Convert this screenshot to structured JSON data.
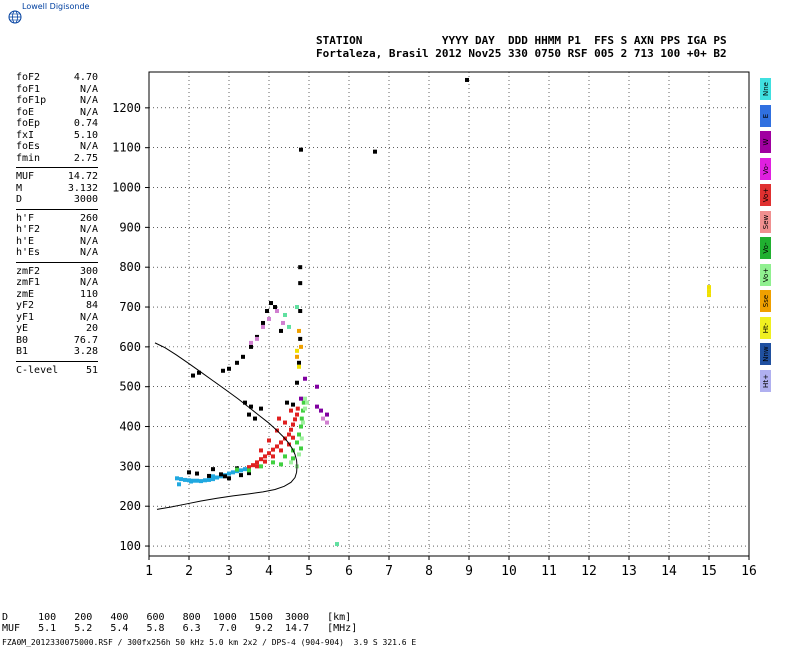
{
  "logo": {
    "text": "Lowell Digisonde",
    "icon": "globe-icon",
    "color": "#0040a0"
  },
  "header": {
    "row1": "STATION            YYYY DAY  DDD HHMM P1  FFS S AXN PPS IGA PS",
    "row2": "Fortaleza, Brasil 2012 Nov25 330 0750 RSF 005 2 713 100 +0+ B2"
  },
  "params": {
    "group1": [
      {
        "name": "foF2",
        "value": "4.70"
      },
      {
        "name": "foF1",
        "value": "N/A"
      },
      {
        "name": "foF1p",
        "value": "N/A"
      },
      {
        "name": "foE",
        "value": "N/A"
      },
      {
        "name": "foEp",
        "value": "0.74"
      },
      {
        "name": "fxI",
        "value": "5.10"
      },
      {
        "name": "foEs",
        "value": "N/A"
      },
      {
        "name": "fmin",
        "value": "2.75"
      }
    ],
    "group2": [
      {
        "name": "MUF",
        "value": "14.72"
      },
      {
        "name": "M",
        "value": "3.132"
      },
      {
        "name": "D",
        "value": "3000"
      }
    ],
    "group3": [
      {
        "name": "h'F",
        "value": "260"
      },
      {
        "name": "h'F2",
        "value": "N/A"
      },
      {
        "name": "h'E",
        "value": "N/A"
      },
      {
        "name": "h'Es",
        "value": "N/A"
      }
    ],
    "group4": [
      {
        "name": "zmF2",
        "value": "300"
      },
      {
        "name": "zmF1",
        "value": "N/A"
      },
      {
        "name": "zmE",
        "value": "110"
      },
      {
        "name": "yF2",
        "value": "84"
      },
      {
        "name": "yF1",
        "value": "N/A"
      },
      {
        "name": "yE",
        "value": "20"
      },
      {
        "name": "B0",
        "value": "76.7"
      },
      {
        "name": "B1",
        "value": "3.28"
      }
    ],
    "group5": [
      {
        "name": "C-level",
        "value": "51"
      }
    ]
  },
  "legend": [
    {
      "label": "Nne",
      "color": "#40e0e0"
    },
    {
      "label": "E",
      "color": "#3070e0"
    },
    {
      "label": "W",
      "color": "#a000a0"
    },
    {
      "label": "Vo-",
      "color": "#e020e0"
    },
    {
      "label": "Vo+",
      "color": "#e03030"
    },
    {
      "label": "Sew",
      "color": "#f09090"
    },
    {
      "label": "Vo-",
      "color": "#20b030"
    },
    {
      "label": "Vo+",
      "color": "#90f090"
    },
    {
      "label": "Sse",
      "color": "#f0a000"
    },
    {
      "label": "Ht-",
      "color": "#f0f020"
    },
    {
      "label": "Nnw",
      "color": "#2050a0"
    },
    {
      "label": "Ht+",
      "color": "#b0b0f0"
    }
  ],
  "bottom": {
    "row1": "D     100   200   400   600   800  1000  1500  3000   [km]",
    "row2": "MUF   5.1   5.2   5.4   5.8   6.3   7.0   9.2  14.7   [MHz]",
    "footer": "FZA0M_2012330075000.RSF / 300fx256h 50 kHz 5.0 km 2x2 / DPS-4 (904-904)  3.9 S 321.6 E"
  },
  "chart_data": {
    "type": "scatter",
    "xlabel": "",
    "ylabel": "",
    "xlim": [
      1,
      16
    ],
    "ylim": [
      75,
      1290
    ],
    "x_ticks": [
      1,
      2,
      3,
      4,
      5,
      6,
      7,
      8,
      9,
      10,
      11,
      12,
      13,
      14,
      15,
      16
    ],
    "y_ticks": [
      100,
      200,
      300,
      400,
      500,
      600,
      700,
      800,
      900,
      1000,
      1100,
      1200
    ],
    "grid": true,
    "series": [
      {
        "points": [
          [
            1.7,
            270
          ],
          [
            1.8,
            268
          ],
          [
            1.9,
            266
          ],
          [
            2.0,
            265
          ],
          [
            2.1,
            264
          ],
          [
            2.2,
            264
          ],
          [
            2.3,
            263
          ],
          [
            2.4,
            265
          ],
          [
            2.5,
            266
          ],
          [
            2.6,
            268
          ],
          [
            2.7,
            272
          ],
          [
            2.8,
            275
          ],
          [
            2.9,
            278
          ],
          [
            3.0,
            282
          ],
          [
            3.1,
            285
          ],
          [
            3.2,
            288
          ],
          [
            1.75,
            255
          ],
          [
            2.05,
            262
          ],
          [
            2.6,
            275
          ],
          [
            3.3,
            290
          ],
          [
            3.4,
            293
          ]
        ],
        "color": "#20a8e0"
      },
      {
        "points": [
          [
            2.0,
            285
          ],
          [
            2.2,
            282
          ],
          [
            2.5,
            276
          ],
          [
            2.8,
            280
          ],
          [
            3.0,
            270
          ],
          [
            3.3,
            278
          ],
          [
            3.5,
            283
          ],
          [
            2.6,
            293
          ],
          [
            2.9,
            275
          ],
          [
            3.2,
            295
          ]
        ],
        "color": "#000000"
      },
      {
        "points": [
          [
            3.5,
            298
          ],
          [
            3.6,
            303
          ],
          [
            3.7,
            310
          ],
          [
            3.8,
            318
          ],
          [
            3.9,
            325
          ],
          [
            4.0,
            333
          ],
          [
            4.1,
            342
          ],
          [
            4.2,
            350
          ],
          [
            4.3,
            360
          ],
          [
            4.4,
            370
          ],
          [
            4.5,
            380
          ],
          [
            4.55,
            392
          ],
          [
            4.6,
            405
          ],
          [
            4.65,
            418
          ],
          [
            4.7,
            430
          ],
          [
            4.72,
            445
          ],
          [
            3.7,
            300
          ],
          [
            3.9,
            312
          ],
          [
            4.1,
            325
          ],
          [
            4.3,
            340
          ],
          [
            4.5,
            355
          ],
          [
            4.6,
            372
          ],
          [
            4.0,
            365
          ],
          [
            4.2,
            390
          ],
          [
            4.4,
            410
          ],
          [
            4.55,
            440
          ],
          [
            3.8,
            340
          ],
          [
            4.25,
            420
          ]
        ],
        "color": "#e02020"
      },
      {
        "points": [
          [
            3.2,
            292
          ],
          [
            3.5,
            290
          ],
          [
            3.8,
            300
          ],
          [
            4.1,
            310
          ],
          [
            4.4,
            325
          ],
          [
            4.6,
            340
          ],
          [
            4.7,
            360
          ],
          [
            4.75,
            380
          ],
          [
            4.8,
            400
          ],
          [
            4.82,
            420
          ],
          [
            4.85,
            440
          ],
          [
            4.87,
            460
          ],
          [
            4.6,
            320
          ],
          [
            4.8,
            345
          ],
          [
            4.3,
            305
          ]
        ],
        "color": "#40d040"
      },
      {
        "points": [
          [
            4.7,
            300
          ],
          [
            4.75,
            330
          ],
          [
            4.82,
            370
          ],
          [
            4.85,
            410
          ],
          [
            4.9,
            445
          ],
          [
            4.9,
            470
          ],
          [
            4.55,
            310
          ],
          [
            4.95,
            460
          ]
        ],
        "color": "#a0f0a0"
      },
      {
        "points": [
          [
            2.1,
            528
          ],
          [
            2.25,
            535
          ],
          [
            2.85,
            540
          ],
          [
            3.0,
            545
          ],
          [
            3.2,
            560
          ],
          [
            3.35,
            575
          ],
          [
            3.55,
            600
          ],
          [
            3.7,
            625
          ],
          [
            3.85,
            660
          ],
          [
            3.95,
            690
          ],
          [
            4.05,
            710
          ],
          [
            4.15,
            700
          ],
          [
            4.3,
            640
          ],
          [
            4.45,
            460
          ],
          [
            4.6,
            455
          ],
          [
            3.4,
            460
          ],
          [
            3.55,
            450
          ],
          [
            3.8,
            445
          ],
          [
            4.7,
            510
          ],
          [
            4.75,
            560
          ],
          [
            4.78,
            620
          ],
          [
            4.78,
            690
          ],
          [
            4.78,
            760
          ],
          [
            4.78,
            800
          ],
          [
            8.95,
            1270
          ],
          [
            6.65,
            1090
          ],
          [
            4.8,
            1095
          ],
          [
            3.5,
            430
          ],
          [
            3.65,
            420
          ]
        ],
        "color": "#000000"
      },
      {
        "points": [
          [
            3.7,
            620
          ],
          [
            3.85,
            650
          ],
          [
            4.0,
            670
          ],
          [
            4.2,
            690
          ],
          [
            3.55,
            610
          ],
          [
            5.35,
            420
          ],
          [
            5.45,
            410
          ],
          [
            4.35,
            660
          ]
        ],
        "color": "#d080d0"
      },
      {
        "points": [
          [
            5.2,
            450
          ],
          [
            5.3,
            440
          ],
          [
            5.45,
            430
          ],
          [
            5.2,
            500
          ],
          [
            4.8,
            470
          ],
          [
            4.9,
            520
          ]
        ],
        "color": "#8000a0"
      },
      {
        "points": [
          [
            4.7,
            590
          ],
          [
            4.75,
            550
          ],
          [
            15.0,
            750
          ],
          [
            15.0,
            740
          ],
          [
            15.0,
            730
          ]
        ],
        "color": "#f0e000"
      },
      {
        "points": [
          [
            4.7,
            700
          ],
          [
            4.5,
            650
          ],
          [
            4.4,
            680
          ],
          [
            5.7,
            105
          ]
        ],
        "color": "#60e0a0"
      },
      {
        "points": [
          [
            4.8,
            600
          ],
          [
            4.75,
            640
          ],
          [
            4.7,
            575
          ]
        ],
        "color": "#f0a000"
      }
    ],
    "profile_curve": [
      [
        4.7,
        300
      ],
      [
        4.69,
        315
      ],
      [
        4.65,
        330
      ],
      [
        4.58,
        345
      ],
      [
        4.48,
        360
      ],
      [
        4.35,
        375
      ],
      [
        4.18,
        392
      ],
      [
        3.98,
        410
      ],
      [
        3.75,
        428
      ],
      [
        3.5,
        448
      ],
      [
        3.22,
        470
      ],
      [
        2.92,
        492
      ],
      [
        2.6,
        515
      ],
      [
        2.28,
        538
      ],
      [
        1.97,
        560
      ],
      [
        1.68,
        580
      ],
      [
        1.4,
        598
      ],
      [
        1.15,
        610
      ]
    ],
    "profile_lower": [
      [
        4.7,
        300
      ],
      [
        4.69,
        285
      ],
      [
        4.65,
        272
      ],
      [
        4.55,
        260
      ],
      [
        4.38,
        250
      ],
      [
        4.15,
        242
      ],
      [
        3.85,
        236
      ],
      [
        3.5,
        231
      ],
      [
        3.1,
        226
      ],
      [
        2.7,
        220
      ],
      [
        2.3,
        213
      ],
      [
        1.95,
        206
      ],
      [
        1.55,
        198
      ],
      [
        1.2,
        192
      ]
    ]
  }
}
